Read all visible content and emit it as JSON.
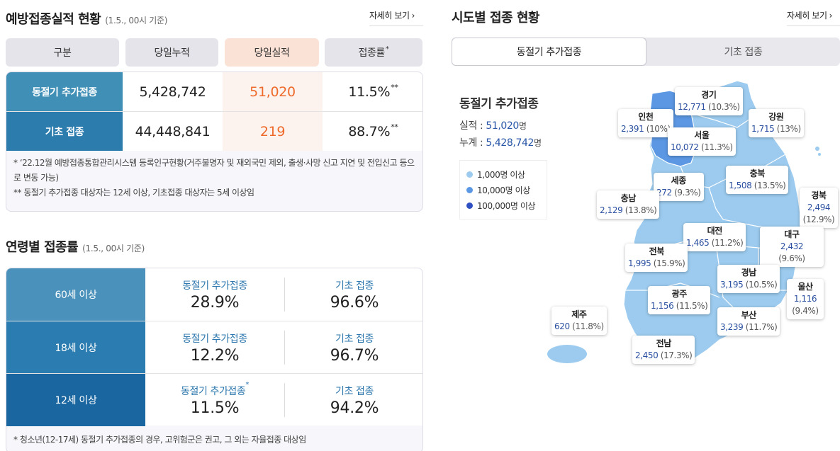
{
  "left": {
    "results": {
      "title": "예방접종실적 현황",
      "subtitle": "(1.5., 00시 기준)",
      "more": "자세히 보기",
      "headers": [
        "구분",
        "당일누적",
        "당일실적",
        "접종률"
      ],
      "header_mark": "*",
      "rows": [
        {
          "label": "동절기 추가접종",
          "cumulative": "5,428,742",
          "daily": "51,020",
          "rate": "11.5%",
          "mark": "**"
        },
        {
          "label": "기초 접종",
          "cumulative": "44,448,841",
          "daily": "219",
          "rate": "88.7%",
          "mark": "**"
        }
      ],
      "notes": [
        "* ‘22.12월 예방접종통합관리시스템 등록인구현황(거주불명자 및 재외국민 제외, 출생·사망 신고 지연 및 전입신고 등으로 변동 가능)",
        "** 동절기 추가접종 대상자는 12세 이상, 기초접종 대상자는 5세 이상임"
      ]
    },
    "age": {
      "title": "연령별 접종률",
      "subtitle": "(1.5., 00시 기준)",
      "rows": [
        {
          "label": "60세 이상",
          "col1_cap": "동절기 추가접종",
          "col1_mark": "",
          "col1_val": "28.9%",
          "col2_cap": "기초 접종",
          "col2_val": "96.6%"
        },
        {
          "label": "18세 이상",
          "col1_cap": "동절기 추가접종",
          "col1_mark": "",
          "col1_val": "12.2%",
          "col2_cap": "기초 접종",
          "col2_val": "96.7%"
        },
        {
          "label": "12세 이상",
          "col1_cap": "동절기 추가접종",
          "col1_mark": "*",
          "col1_val": "11.5%",
          "col2_cap": "기초 접종",
          "col2_val": "94.2%"
        }
      ],
      "note": "* 청소년(12-17세) 동절기 추가접종의 경우, 고위험군은 권고, 그 외는 자율접종 대상임"
    }
  },
  "right": {
    "title": "시도별 접종 현황",
    "more": "자세히 보기",
    "tabs": [
      "동절기 추가접종",
      "기초 접종"
    ],
    "summary": {
      "title": "동절기 추가접종",
      "daily_label": "실적 :",
      "daily_value": "51,020",
      "total_label": "누계 :",
      "total_value": "5,428,742",
      "unit": "명"
    },
    "legend": [
      {
        "label": "1,000명 이상",
        "color": "#9ccbef"
      },
      {
        "label": "10,000명 이상",
        "color": "#5b97e3"
      },
      {
        "label": "100,000명 이상",
        "color": "#2f50c2"
      }
    ],
    "regions": [
      {
        "key": "gyeonggi",
        "name": "경기",
        "count": "12,771",
        "pct": "(10.3%)"
      },
      {
        "key": "incheon",
        "name": "인천",
        "count": "2,391",
        "pct": "(10%)"
      },
      {
        "key": "gangwon",
        "name": "강원",
        "count": "1,715",
        "pct": "(13%)"
      },
      {
        "key": "seoul",
        "name": "서울",
        "count": "10,072",
        "pct": "(11.3%)"
      },
      {
        "key": "sejong",
        "name": "세종",
        "count": "272",
        "pct": "(9.3%)"
      },
      {
        "key": "chungbuk",
        "name": "충북",
        "count": "1,508",
        "pct": "(13.5%)"
      },
      {
        "key": "chungnam",
        "name": "충남",
        "count": "2,129",
        "pct": "(13.8%)"
      },
      {
        "key": "gyeongbuk",
        "name": "경북",
        "count": "2,494",
        "pct": "(12.9%)"
      },
      {
        "key": "daejeon",
        "name": "대전",
        "count": "1,465",
        "pct": "(11.2%)"
      },
      {
        "key": "daegu",
        "name": "대구",
        "count": "2,432",
        "pct": "(9.6%)"
      },
      {
        "key": "jeonbuk",
        "name": "전북",
        "count": "1,995",
        "pct": "(15.9%)"
      },
      {
        "key": "gyeongnam",
        "name": "경남",
        "count": "3,195",
        "pct": "(10.5%)"
      },
      {
        "key": "ulsan",
        "name": "울산",
        "count": "1,116",
        "pct": "(9.4%)"
      },
      {
        "key": "gwangju",
        "name": "광주",
        "count": "1,156",
        "pct": "(11.5%)"
      },
      {
        "key": "jeju",
        "name": "제주",
        "count": "620",
        "pct": "(11.8%)"
      },
      {
        "key": "busan",
        "name": "부산",
        "count": "3,239",
        "pct": "(11.7%)"
      },
      {
        "key": "jeonnam",
        "name": "전남",
        "count": "2,450",
        "pct": "(17.3%)"
      }
    ]
  }
}
